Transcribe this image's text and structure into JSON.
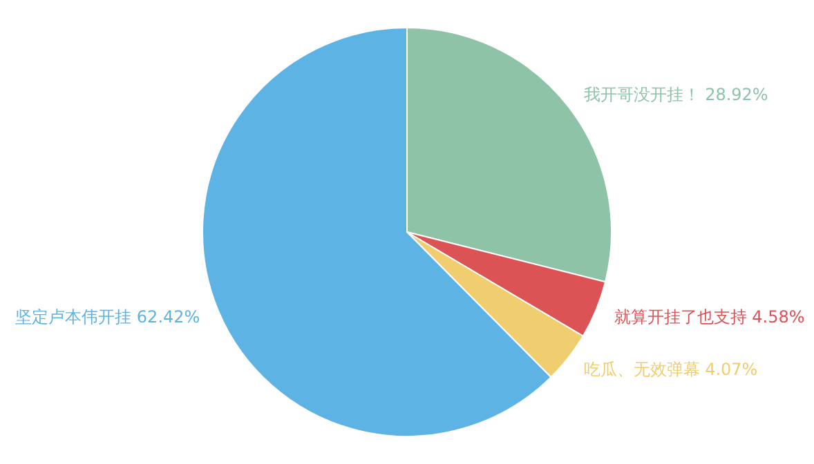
{
  "chart_data": {
    "type": "pie",
    "categories": [
      "我开哥没开挂！",
      "就算开挂了也支持",
      "吃瓜、无效弹幕",
      "坚定卢本伟开挂"
    ],
    "values": [
      28.92,
      4.58,
      4.07,
      62.42
    ],
    "value_labels": [
      "28.92%",
      "4.58%",
      "4.07%",
      "62.42%"
    ],
    "colors": [
      "#8fc3a8",
      "#dc5356",
      "#f0cd6e",
      "#5db4e4"
    ]
  }
}
